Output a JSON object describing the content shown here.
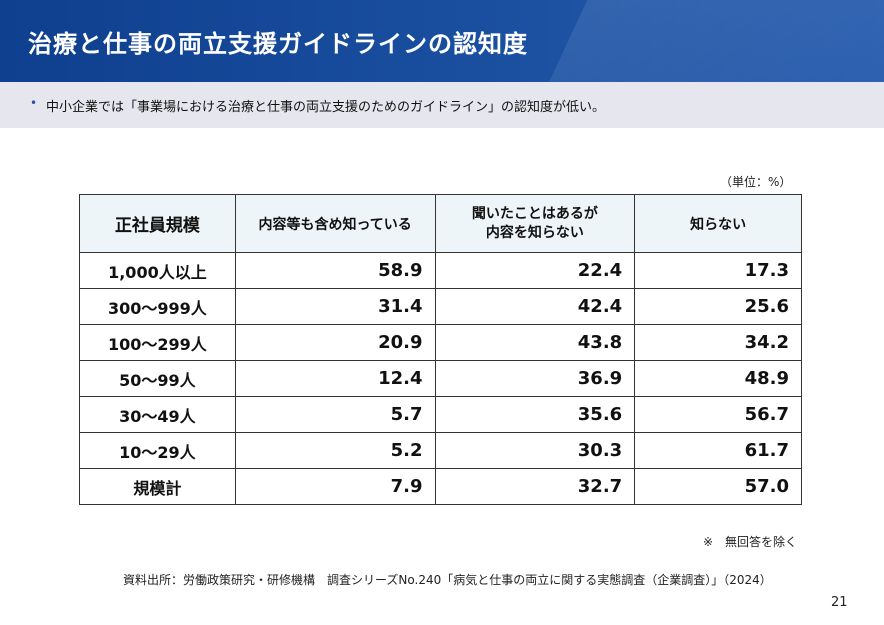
{
  "header": {
    "title": "治療と仕事の両立支援ガイドラインの認知度"
  },
  "subbar": {
    "bullet": "•",
    "text": "中小企業では「事業場における治療と仕事の両立支援のためのガイドライン」の認知度が低い。"
  },
  "unit": "（単位：%）",
  "table": {
    "headers": [
      "正社員規模",
      "内容等も含め知っている",
      "聞いたことはあるが\n内容を知らない",
      "知らない"
    ],
    "rows": [
      {
        "label": "1,000人以上",
        "values": [
          "58.9",
          "22.4",
          "17.3"
        ]
      },
      {
        "label": "300～999人",
        "values": [
          "31.4",
          "42.4",
          "25.6"
        ]
      },
      {
        "label": "100～299人",
        "values": [
          "20.9",
          "43.8",
          "34.2"
        ]
      },
      {
        "label": "50～99人",
        "values": [
          "12.4",
          "36.9",
          "48.9"
        ]
      },
      {
        "label": "30～49人",
        "values": [
          "5.7",
          "35.6",
          "56.7"
        ]
      },
      {
        "label": "10～29人",
        "values": [
          "5.2",
          "30.3",
          "61.7"
        ]
      },
      {
        "label": "規模計",
        "values": [
          "7.9",
          "32.7",
          "57.0"
        ]
      }
    ]
  },
  "note": "※　無回答を除く",
  "source": "資料出所：労働政策研究・研修機構　調査シリーズNo.240「病気と仕事の両立に関する実態調査（企業調査）」（2024）",
  "page_number": "21"
}
